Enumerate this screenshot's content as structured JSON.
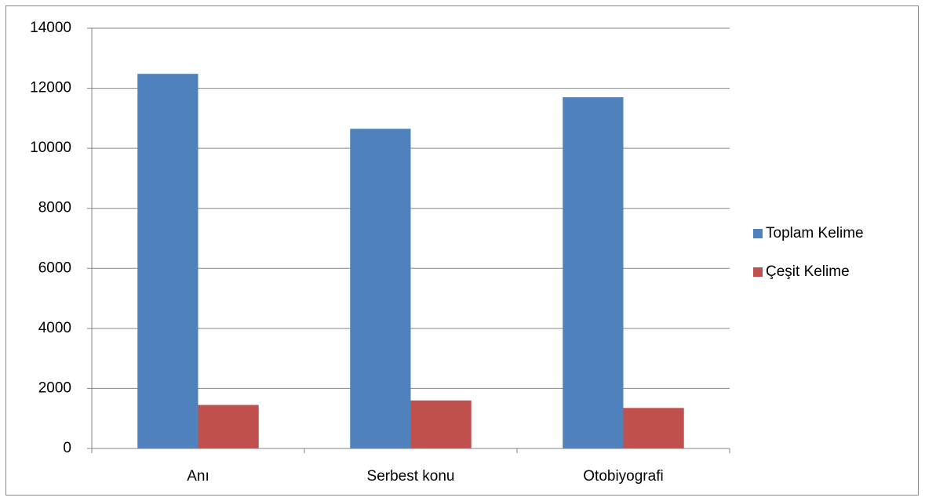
{
  "chart_data": {
    "type": "bar",
    "categories": [
      "Anı",
      "Serbest konu",
      "Otobiyografi"
    ],
    "series": [
      {
        "name": "Toplam Kelime",
        "color": "#4f81bd",
        "values": [
          12480,
          10650,
          11700
        ]
      },
      {
        "name": "Çeşit Kelime",
        "color": "#c0504d",
        "values": [
          1450,
          1600,
          1350
        ]
      }
    ],
    "ylim": [
      0,
      14000
    ],
    "yticks": [
      0,
      2000,
      4000,
      6000,
      8000,
      10000,
      12000,
      14000
    ],
    "grid": true,
    "legend": "right"
  }
}
